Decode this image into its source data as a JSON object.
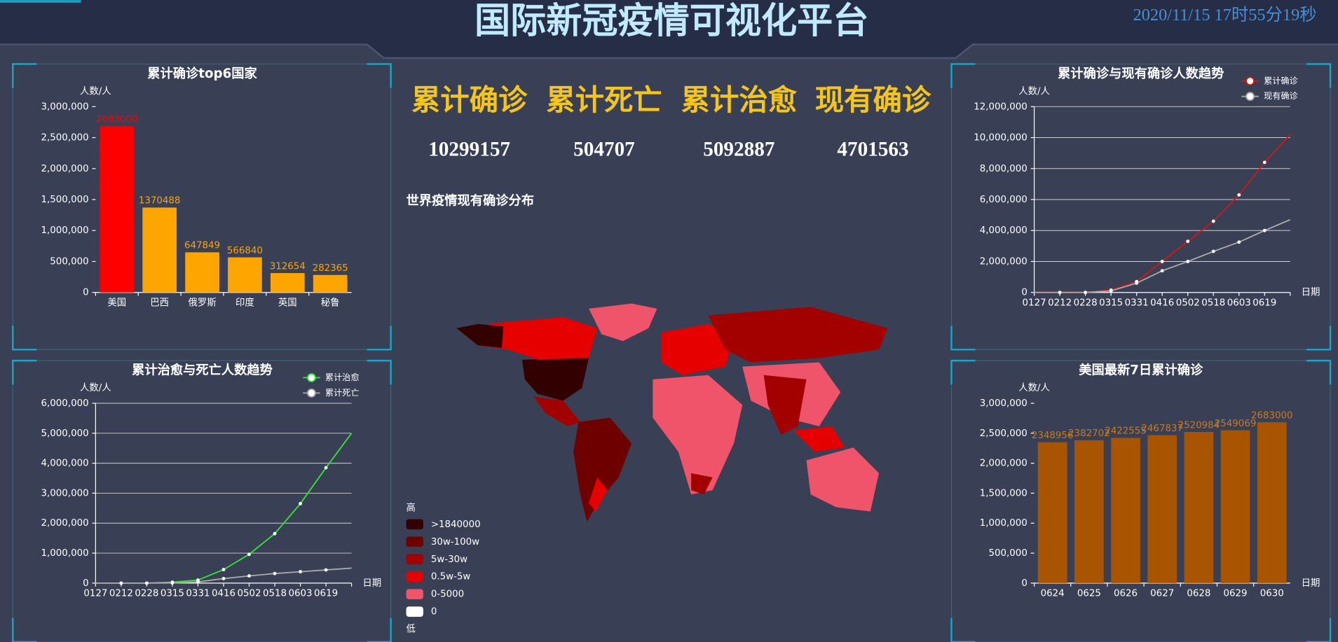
{
  "header": {
    "title": "国际新冠疫情可视化平台",
    "datetime": "2020/11/15 17时55分19秒"
  },
  "stats": [
    {
      "label": "累计确诊",
      "value": 10299157
    },
    {
      "label": "累计死亡",
      "value": 504707
    },
    {
      "label": "累计治愈",
      "value": 5092887
    },
    {
      "label": "现有确诊",
      "value": 4701563
    }
  ],
  "map": {
    "title": "世界疫情现有确诊分布",
    "legend": {
      "high": "高",
      "low": "低",
      "items": [
        {
          "label": ">1840000",
          "color": "#330000"
        },
        {
          "label": "30w-100w",
          "color": "#6e0000"
        },
        {
          "label": "5w-30w",
          "color": "#a30000"
        },
        {
          "label": "0.5w-5w",
          "color": "#e60000"
        },
        {
          "label": "0-5000",
          "color": "#f0546a"
        },
        {
          "label": "0",
          "color": "#ffffff"
        }
      ]
    }
  },
  "chart_data": [
    {
      "type": "bar",
      "title": "累计确诊top6国家",
      "y_label": "人数/人",
      "categories": [
        "美国",
        "巴西",
        "俄罗斯",
        "印度",
        "英国",
        "秘鲁"
      ],
      "values": [
        2683000,
        1370488,
        647849,
        566840,
        312654,
        282365
      ],
      "colors": [
        "#ff0000",
        "#ffa500",
        "#ffa500",
        "#ffa500",
        "#ffa500",
        "#ffa500"
      ],
      "ylim": [
        0,
        3000000
      ],
      "yticks": [
        0,
        {
          "value": 500000,
          "label": "500,000"
        },
        {
          "value": 1000000,
          "label": "1,000,000"
        },
        {
          "value": 1500000,
          "label": "1,500,000"
        },
        {
          "value": 2000000,
          "label": "2,000,000"
        },
        {
          "value": 2500000,
          "label": "2,500,000"
        },
        {
          "value": 3000000,
          "label": "3,000,000"
        }
      ],
      "grid": false
    },
    {
      "type": "line",
      "title": "累计治愈与死亡人数趋势",
      "y_label": "人数/人",
      "x_label": "日期",
      "categories": [
        "0127",
        "0212",
        "0228",
        "0315",
        "0331",
        "0416",
        "0502",
        "0518",
        "0603",
        "0619",
        null
      ],
      "series": [
        {
          "name": "累计治愈",
          "color": "#33e633",
          "values": [
            0,
            0,
            0,
            30000,
            100000,
            450000,
            960000,
            1650000,
            2650000,
            3850000,
            5000000
          ]
        },
        {
          "name": "累计死亡",
          "color": "#aaaaaa",
          "values": [
            0,
            0,
            0,
            5000,
            40000,
            150000,
            240000,
            320000,
            380000,
            440000,
            500000
          ]
        }
      ],
      "ylim": [
        0,
        6000000
      ],
      "yticks": [
        0,
        {
          "value": 1000000,
          "label": "1,000,000"
        },
        {
          "value": 2000000,
          "label": "2,000,000"
        },
        {
          "value": 3000000,
          "label": "3,000,000"
        },
        {
          "value": 4000000,
          "label": "4,000,000"
        },
        {
          "value": 5000000,
          "label": "5,000,000"
        },
        {
          "value": 6000000,
          "label": "6,000,000"
        }
      ],
      "grid": true,
      "legend": "top-right"
    },
    {
      "type": "line",
      "title": "累计确诊与现有确诊人数趋势",
      "y_label": "人数/人",
      "x_label": "日期",
      "categories": [
        "0127",
        "0212",
        "0228",
        "0315",
        "0331",
        "0416",
        "0502",
        "0518",
        "0603",
        "0619",
        null
      ],
      "series": [
        {
          "name": "累计确诊",
          "color": "#d01818",
          "values": [
            0,
            0,
            0,
            150000,
            700000,
            2000000,
            3300000,
            4600000,
            6300000,
            8400000,
            10200000
          ]
        },
        {
          "name": "现有确诊",
          "color": "#aaaaaa",
          "values": [
            0,
            0,
            0,
            100000,
            600000,
            1400000,
            2000000,
            2650000,
            3250000,
            4000000,
            4700000
          ]
        }
      ],
      "ylim": [
        0,
        12000000
      ],
      "yticks": [
        0,
        {
          "value": 2000000,
          "label": "2,000,000"
        },
        {
          "value": 4000000,
          "label": "4,000,000"
        },
        {
          "value": 6000000,
          "label": "6,000,000"
        },
        {
          "value": 8000000,
          "label": "8,000,000"
        },
        {
          "value": 10000000,
          "label": "10,000,000"
        },
        {
          "value": 12000000,
          "label": "12,000,000"
        }
      ],
      "grid": true,
      "legend": "top-right"
    },
    {
      "type": "bar",
      "title": "美国最新7日累计确诊",
      "y_label": "人数/人",
      "x_label": "日期",
      "categories": [
        "0624",
        "0625",
        "0626",
        "0627",
        "0628",
        "0629",
        "0630"
      ],
      "values": [
        2348956,
        2382702,
        2422555,
        2467837,
        2520984,
        2549069,
        2683000
      ],
      "color": "#a85400",
      "label_color": "#c47a2a",
      "ylim": [
        0,
        3000000
      ],
      "yticks": [
        0,
        {
          "value": 500000,
          "label": "500,000"
        },
        {
          "value": 1000000,
          "label": "1,000,000"
        },
        {
          "value": 1500000,
          "label": "1,500,000"
        },
        {
          "value": 2000000,
          "label": "2,000,000"
        },
        {
          "value": 2500000,
          "label": "2,500,000"
        },
        {
          "value": 3000000,
          "label": "3,000,000"
        }
      ],
      "grid": false
    }
  ]
}
